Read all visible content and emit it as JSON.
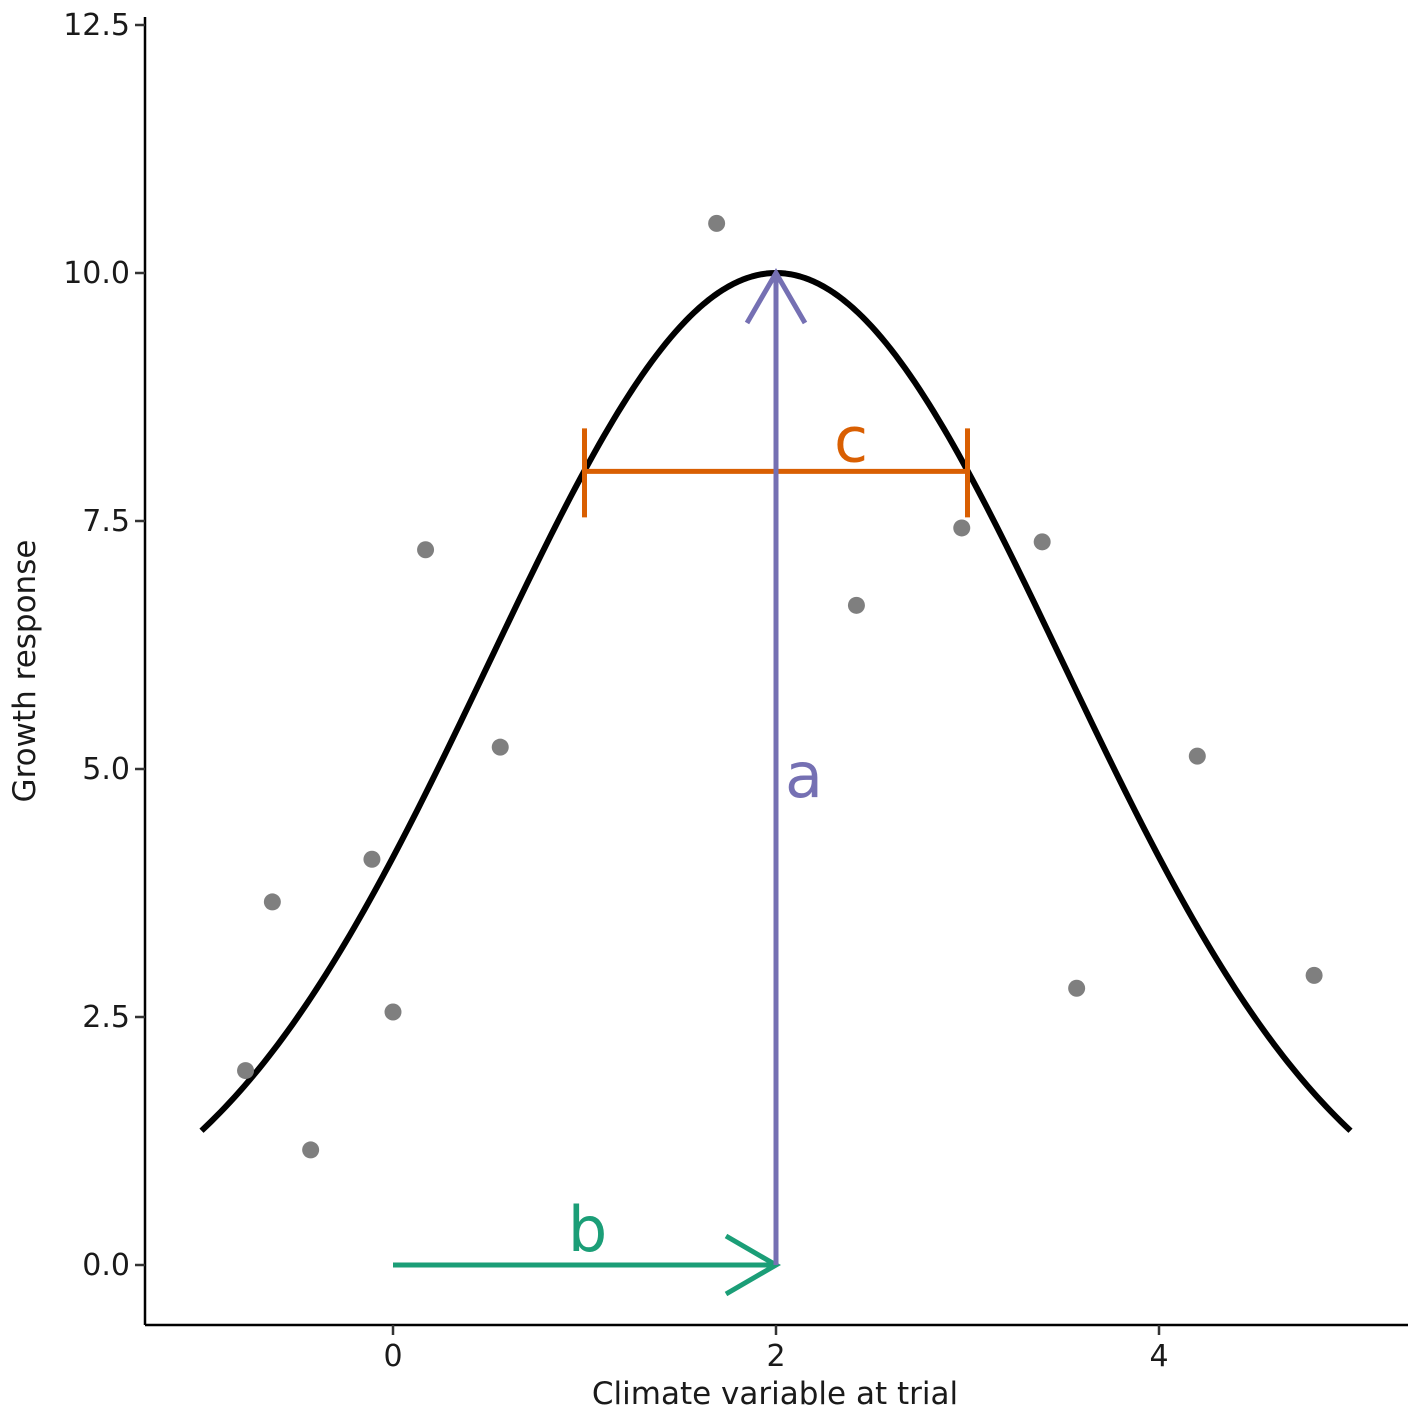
{
  "chart_data": {
    "type": "scatter",
    "title": "",
    "xlabel": "Climate variable at trial",
    "ylabel": "Growth response",
    "xlim": [
      -0.65,
      5.3
    ],
    "ylim": [
      -0.6,
      12.5
    ],
    "x_ticks": [
      0,
      2,
      4
    ],
    "x_tick_labels": [
      "0",
      "2",
      "4"
    ],
    "y_ticks": [
      0.0,
      2.5,
      5.0,
      7.5,
      10.0,
      12.5
    ],
    "y_tick_labels": [
      "0.0",
      "2.5",
      "5.0",
      "7.5",
      "10.0",
      "12.5"
    ],
    "grid": false,
    "legend": "none",
    "points": {
      "color": "#7f7f7f",
      "x": [
        -0.77,
        -0.63,
        -0.43,
        -0.11,
        0.0,
        0.17,
        0.56,
        1.69,
        2.42,
        2.97,
        3.39,
        3.57,
        4.2,
        4.81
      ],
      "y": [
        1.96,
        3.66,
        1.16,
        4.09,
        2.55,
        7.21,
        5.22,
        10.5,
        6.65,
        7.43,
        7.29,
        2.79,
        5.13,
        2.92
      ]
    },
    "curve": {
      "type": "gaussian",
      "color": "#000000",
      "amplitude": 10.0,
      "center": 2.0,
      "sigma": 1.5,
      "x_range": [
        -1.0,
        5.0
      ]
    },
    "annotations": {
      "a": {
        "label": "a",
        "color": "#7570b3",
        "x": 2.0,
        "y_from": 0.0,
        "y_to": 10.0
      },
      "b": {
        "label": "b",
        "color": "#1b9e77",
        "y": 0.0,
        "x_from": 0.0,
        "x_to": 2.0
      },
      "c": {
        "label": "c",
        "color": "#d95f02",
        "y": 8.0,
        "x_from": 1.0,
        "x_to": 3.0
      }
    }
  }
}
